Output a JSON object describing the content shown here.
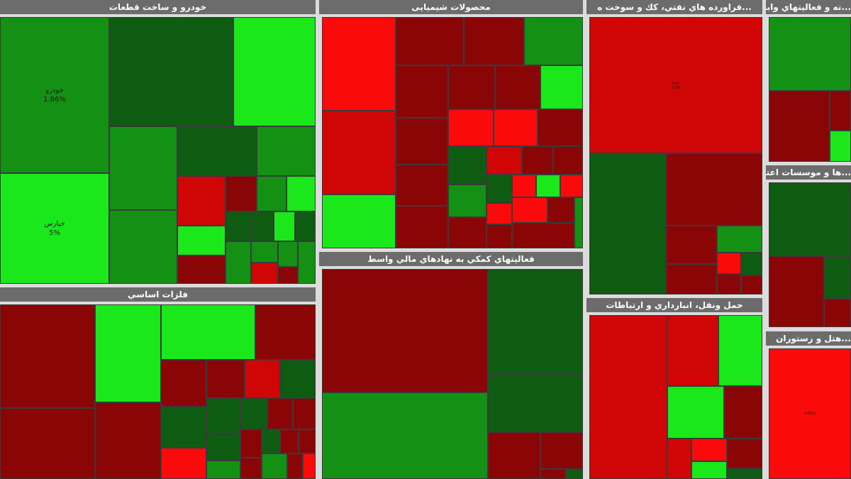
{
  "colors": {
    "strong_green": "#1be81b",
    "green": "#149014",
    "dark_green": "#0e5c12",
    "dark_red": "#8a0606",
    "red": "#d00606",
    "bright_red": "#fa0a0a",
    "header": "#6c6c6c",
    "gap": "#dcdcdc"
  },
  "sectors": [
    {
      "title": "خودرو و ساخت قطعات",
      "tiles": [
        {
          "symbol": "خودرو",
          "change": "1.86%",
          "color": "green",
          "size": "big"
        },
        {
          "symbol": "خپارس",
          "change": "5%",
          "color": "strong_green",
          "size": "big"
        },
        {
          "symbol": "",
          "change": "",
          "color": "dark_green"
        },
        {
          "symbol": "",
          "change": "",
          "color": "strong_green"
        },
        {
          "symbol": "",
          "change": "",
          "color": "green"
        },
        {
          "symbol": "",
          "change": "",
          "color": "dark_green"
        },
        {
          "symbol": "",
          "change": "",
          "color": "green"
        },
        {
          "symbol": "",
          "change": "",
          "color": "green"
        },
        {
          "symbol": "",
          "change": "",
          "color": "red"
        },
        {
          "symbol": "",
          "change": "",
          "color": "dark_red"
        },
        {
          "symbol": "",
          "change": "",
          "color": "green"
        },
        {
          "symbol": "",
          "change": "",
          "color": "strong_green"
        },
        {
          "symbol": "",
          "change": "",
          "color": "strong_green"
        },
        {
          "symbol": "",
          "change": "",
          "color": "dark_green"
        },
        {
          "symbol": "",
          "change": "",
          "color": "dark_green"
        },
        {
          "symbol": "",
          "change": "",
          "color": "strong_green"
        },
        {
          "symbol": "",
          "change": "",
          "color": "dark_green"
        },
        {
          "symbol": "",
          "change": "",
          "color": "dark_red"
        },
        {
          "symbol": "",
          "change": "",
          "color": "green"
        },
        {
          "symbol": "",
          "change": "",
          "color": "green"
        },
        {
          "symbol": "",
          "change": "",
          "color": "red"
        },
        {
          "symbol": "",
          "change": "",
          "color": "dark_red"
        },
        {
          "symbol": "",
          "change": "",
          "color": "green"
        },
        {
          "symbol": "",
          "change": "",
          "color": "green"
        }
      ]
    },
    {
      "title": "محصولات شیمیایی",
      "tiles": [
        {
          "symbol": "",
          "change": "",
          "color": "bright_red"
        },
        {
          "symbol": "",
          "change": "",
          "color": "red"
        },
        {
          "symbol": "",
          "change": "",
          "color": "strong_green"
        },
        {
          "symbol": "",
          "change": "",
          "color": "dark_red"
        },
        {
          "symbol": "",
          "change": "",
          "color": "dark_red"
        },
        {
          "symbol": "",
          "change": "",
          "color": "green"
        },
        {
          "symbol": "",
          "change": "",
          "color": "dark_red"
        },
        {
          "symbol": "",
          "change": "",
          "color": "dark_red"
        },
        {
          "symbol": "",
          "change": "",
          "color": "dark_red"
        },
        {
          "symbol": "",
          "change": "",
          "color": "strong_green"
        },
        {
          "symbol": "",
          "change": "",
          "color": "dark_red"
        },
        {
          "symbol": "",
          "change": "",
          "color": "bright_red"
        },
        {
          "symbol": "",
          "change": "",
          "color": "bright_red"
        },
        {
          "symbol": "",
          "change": "",
          "color": "dark_red"
        },
        {
          "symbol": "",
          "change": "",
          "color": "dark_red"
        },
        {
          "symbol": "",
          "change": "",
          "color": "dark_red"
        },
        {
          "symbol": "",
          "change": "",
          "color": "dark_green"
        },
        {
          "symbol": "",
          "change": "",
          "color": "red"
        },
        {
          "symbol": "",
          "change": "",
          "color": "dark_red"
        },
        {
          "symbol": "",
          "change": "",
          "color": "dark_red"
        },
        {
          "symbol": "",
          "change": "",
          "color": "green"
        },
        {
          "symbol": "",
          "change": "",
          "color": "dark_green"
        },
        {
          "symbol": "",
          "change": "",
          "color": "bright_red"
        },
        {
          "symbol": "",
          "change": "",
          "color": "strong_green"
        },
        {
          "symbol": "",
          "change": "",
          "color": "bright_red"
        },
        {
          "symbol": "",
          "change": "",
          "color": "dark_red"
        },
        {
          "symbol": "",
          "change": "",
          "color": "bright_red"
        },
        {
          "symbol": "",
          "change": "",
          "color": "dark_red"
        },
        {
          "symbol": "",
          "change": "",
          "color": "bright_red"
        },
        {
          "symbol": "",
          "change": "",
          "color": "dark_red"
        },
        {
          "symbol": "",
          "change": "",
          "color": "green"
        }
      ]
    },
    {
      "title": "...فراورده هاي نفتي، كك و سوخت ه",
      "tiles": [
        {
          "symbol": "شپنا",
          "change": "-3.4%",
          "color": "red",
          "size": "mid"
        },
        {
          "symbol": "",
          "change": "",
          "color": "dark_green"
        },
        {
          "symbol": "",
          "change": "",
          "color": "dark_red"
        },
        {
          "symbol": "",
          "change": "",
          "color": "dark_red"
        },
        {
          "symbol": "",
          "change": "",
          "color": "green"
        },
        {
          "symbol": "",
          "change": "",
          "color": "bright_red"
        },
        {
          "symbol": "",
          "change": "",
          "color": "dark_green"
        },
        {
          "symbol": "",
          "change": "",
          "color": "dark_red"
        },
        {
          "symbol": "",
          "change": "",
          "color": "dark_red"
        },
        {
          "symbol": "",
          "change": "",
          "color": "dark_red"
        }
      ]
    },
    {
      "title": "...نه و فعاليتهاي وابس",
      "tiles": [
        {
          "symbol": "",
          "change": "",
          "color": "green"
        },
        {
          "symbol": "",
          "change": "",
          "color": "dark_red"
        },
        {
          "symbol": "",
          "change": "",
          "color": "dark_red"
        },
        {
          "symbol": "",
          "change": "",
          "color": "strong_green"
        }
      ]
    },
    {
      "title": "فلزات اساسي",
      "tiles": [
        {
          "symbol": "",
          "change": "",
          "color": "dark_red"
        },
        {
          "symbol": "",
          "change": "",
          "color": "dark_red"
        },
        {
          "symbol": "",
          "change": "",
          "color": "strong_green"
        },
        {
          "symbol": "",
          "change": "",
          "color": "dark_red"
        },
        {
          "symbol": "",
          "change": "",
          "color": "strong_green"
        },
        {
          "symbol": "",
          "change": "",
          "color": "dark_red"
        },
        {
          "symbol": "",
          "change": "",
          "color": "dark_red"
        },
        {
          "symbol": "",
          "change": "",
          "color": "dark_red"
        },
        {
          "symbol": "",
          "change": "",
          "color": "red"
        },
        {
          "symbol": "",
          "change": "",
          "color": "dark_green"
        },
        {
          "symbol": "",
          "change": "",
          "color": "dark_green"
        },
        {
          "symbol": "",
          "change": "",
          "color": "dark_green"
        },
        {
          "symbol": "",
          "change": "",
          "color": "dark_green"
        },
        {
          "symbol": "",
          "change": "",
          "color": "dark_red"
        },
        {
          "symbol": "",
          "change": "",
          "color": "dark_red"
        },
        {
          "symbol": "",
          "change": "",
          "color": "dark_green"
        },
        {
          "symbol": "",
          "change": "",
          "color": "green"
        },
        {
          "symbol": "",
          "change": "",
          "color": "dark_red"
        },
        {
          "symbol": "",
          "change": "",
          "color": "dark_green"
        },
        {
          "symbol": "",
          "change": "",
          "color": "dark_red"
        },
        {
          "symbol": "",
          "change": "",
          "color": "bright_red"
        },
        {
          "symbol": "",
          "change": "",
          "color": "dark_red"
        },
        {
          "symbol": "",
          "change": "",
          "color": "dark_red"
        },
        {
          "symbol": "",
          "change": "",
          "color": "green"
        },
        {
          "symbol": "",
          "change": "",
          "color": "dark_red"
        },
        {
          "symbol": "",
          "change": "",
          "color": "bright_red"
        }
      ]
    },
    {
      "title": "فعاليتهاي كمكي به نهادهاي مالي واسط",
      "tiles": [
        {
          "symbol": "",
          "change": "",
          "color": "dark_red"
        },
        {
          "symbol": "",
          "change": "",
          "color": "dark_green"
        },
        {
          "symbol": "",
          "change": "",
          "color": "dark_green"
        },
        {
          "symbol": "",
          "change": "",
          "color": "green"
        },
        {
          "symbol": "",
          "change": "",
          "color": "dark_red"
        },
        {
          "symbol": "",
          "change": "",
          "color": "dark_red"
        },
        {
          "symbol": "",
          "change": "",
          "color": "dark_red"
        },
        {
          "symbol": "",
          "change": "",
          "color": "dark_green"
        }
      ]
    },
    {
      "title": "حمل ونقل، انبارداري و ارتباطات",
      "tiles": [
        {
          "symbol": "",
          "change": "",
          "color": "red"
        },
        {
          "symbol": "",
          "change": "",
          "color": "red"
        },
        {
          "symbol": "",
          "change": "",
          "color": "strong_green"
        },
        {
          "symbol": "",
          "change": "",
          "color": "strong_green"
        },
        {
          "symbol": "",
          "change": "",
          "color": "dark_red"
        },
        {
          "symbol": "",
          "change": "",
          "color": "red"
        },
        {
          "symbol": "",
          "change": "",
          "color": "bright_red"
        },
        {
          "symbol": "",
          "change": "",
          "color": "strong_green"
        },
        {
          "symbol": "",
          "change": "",
          "color": "dark_red"
        },
        {
          "symbol": "",
          "change": "",
          "color": "dark_green"
        }
      ]
    },
    {
      "title": "...ها و موسسات اعتباري",
      "tiles": [
        {
          "symbol": "",
          "change": "",
          "color": "dark_green"
        },
        {
          "symbol": "",
          "change": "",
          "color": "dark_red"
        },
        {
          "symbol": "",
          "change": "",
          "color": "dark_green"
        },
        {
          "symbol": "",
          "change": "",
          "color": "dark_red"
        }
      ]
    },
    {
      "title": "...هتل و رستوران",
      "tiles": [
        {
          "symbol": "",
          "change": "-4.81%",
          "color": "bright_red",
          "size": "mid"
        }
      ]
    }
  ]
}
